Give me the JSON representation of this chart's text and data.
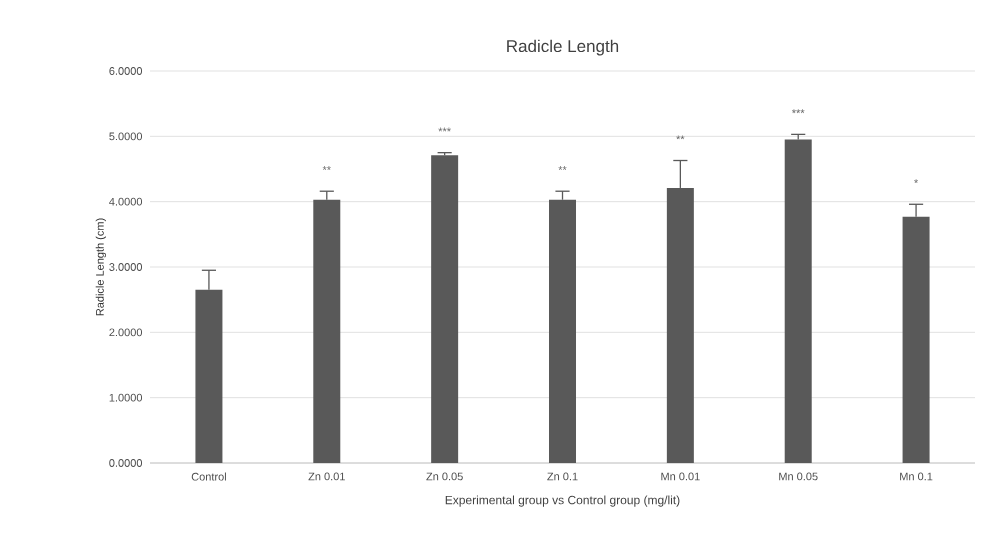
{
  "chart_data": {
    "type": "bar",
    "title": "Radicle Length",
    "xlabel": "Experimental group vs Control group (mg/lit)",
    "ylabel": "Radicle Length (cm)",
    "categories": [
      "Control",
      "Zn 0.01",
      "Zn 0.05",
      "Zn 0.1",
      "Mn 0.01",
      "Mn 0.05",
      "Mn 0.1"
    ],
    "values": [
      2.65,
      4.03,
      4.71,
      4.03,
      4.21,
      4.95,
      3.77
    ],
    "errors": [
      [
        2.65,
        2.95
      ],
      [
        4.03,
        4.16
      ],
      [
        4.71,
        4.75
      ],
      [
        4.03,
        4.16
      ],
      [
        4.21,
        4.63
      ],
      [
        4.95,
        5.03
      ],
      [
        3.77,
        3.96
      ]
    ],
    "color": "#595959",
    "ylim": [
      0,
      6
    ],
    "yticks": [
      {
        "value": 0,
        "label": "0.0000"
      },
      {
        "value": 1,
        "label": "1.0000"
      },
      {
        "value": 2,
        "label": "2.0000"
      },
      {
        "value": 3,
        "label": "3.0000"
      },
      {
        "value": 4,
        "label": "4.0000"
      },
      {
        "value": 5,
        "label": "5.0000"
      },
      {
        "value": 6,
        "label": "6.0000"
      }
    ],
    "grid": "y",
    "annotations": [
      "**",
      "***",
      "**",
      "**",
      "***",
      "*"
    ]
  }
}
